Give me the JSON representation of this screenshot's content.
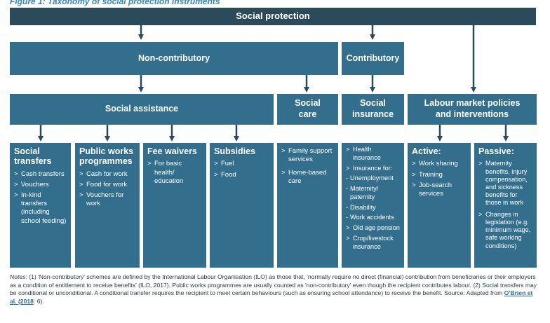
{
  "figure_title": "Figure 1: Taxonomy of social protection instruments",
  "root": "Social protection",
  "level2": {
    "non_contributory": "Non-contributory",
    "contributory": "Contributory"
  },
  "level3": {
    "social_assistance": "Social assistance",
    "social_care": "Social care",
    "social_insurance": "Social insurance",
    "labour_market": "Labour market policies and interventions"
  },
  "leaves": {
    "social_transfers": {
      "title": "Social transfers",
      "items": [
        "Cash transfers",
        "Vouchers",
        "In-kind transfers (including school feeding)"
      ]
    },
    "public_works": {
      "title": "Public works programmes",
      "items": [
        "Cash for work",
        "Food for work",
        "Vouchers for work"
      ]
    },
    "fee_waivers": {
      "title": "Fee waivers",
      "items": [
        "For basic health/ education"
      ]
    },
    "subsidies": {
      "title": "Subsidies",
      "items": [
        "Fuel",
        "Food"
      ]
    },
    "social_care": {
      "items": [
        "Family support services",
        "Home-based care"
      ]
    },
    "social_insurance": {
      "items": [
        "Health insurance",
        "Insurance for:",
        "Old age pension",
        "Crop/livestock insurance"
      ],
      "sub_items": [
        "Unemployment",
        "Maternity/ paternity",
        "Disability",
        "Work accidents"
      ]
    },
    "active": {
      "title": "Active:",
      "items": [
        "Work sharing",
        "Training",
        "Job-search services"
      ]
    },
    "passive": {
      "title": "Passive:",
      "items": [
        "Maternity benefits, injury compensation, and sickness benefits for those in work",
        "Changes in legislation (e.g. minimum wage, safe working conditions)"
      ]
    }
  },
  "notes": {
    "label": "Notes:",
    "text": "(1) 'Non-contributory' schemes are defined by the International Labour Organisation (ILO) as those that, 'normally require no direct (financial) contribution from beneficiaries or their employers as a condition of entitlement to receive benefits' (ILO, 2017). Public works programmes are usually counted as 'non-contributory' even though the recipient contributes labour. (2) Social transfers may be conditional or unconditional. A conditional transfer requires the recipient to meet certain behaviours (such as ensuring school attendance) to receive the benefit. Source: Adapted from",
    "link": "O'Brien et al. (2018",
    "suffix": ": 6)."
  },
  "colors": {
    "box": "#336f8c",
    "root_bar": "#2c4b5a",
    "arrow": "#2c4b5a",
    "title": "#3a86b5"
  }
}
